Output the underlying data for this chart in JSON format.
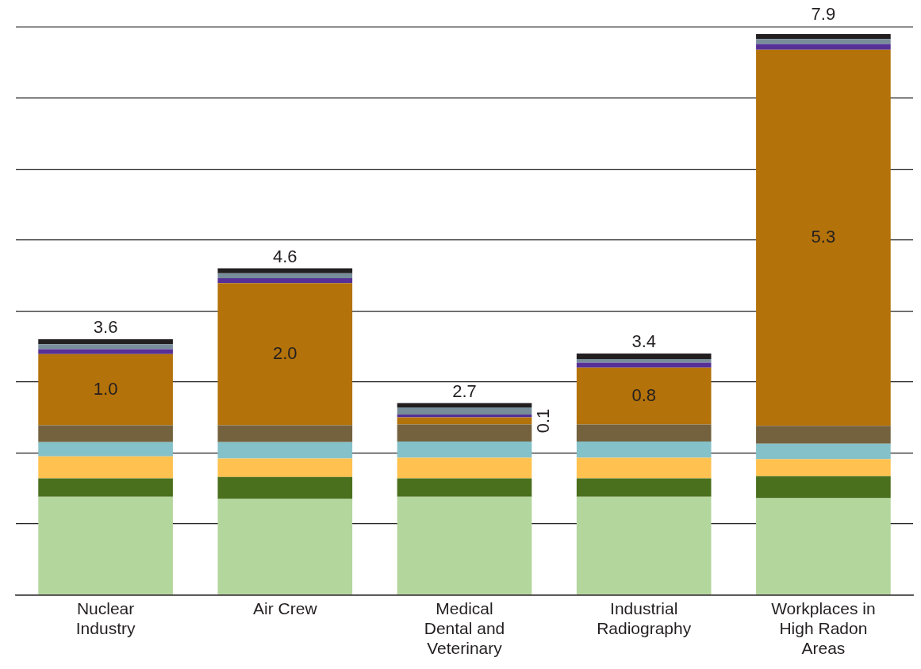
{
  "chart_data": {
    "type": "bar",
    "stacked": true,
    "categories": [
      "Nuclear Industry",
      "Air Crew",
      "Medical Dental and Veterinary",
      "Industrial Radiography",
      "Workplaces in High Radon Areas"
    ],
    "series": [
      {
        "color": "#b3d69d",
        "values": [
          1.38,
          1.35,
          1.38,
          1.38,
          1.36
        ]
      },
      {
        "color": "#4a701e",
        "values": [
          0.26,
          0.31,
          0.26,
          0.26,
          0.31
        ]
      },
      {
        "color": "#ffc14f",
        "values": [
          0.31,
          0.26,
          0.29,
          0.29,
          0.24
        ]
      },
      {
        "color": "#85c1c8",
        "values": [
          0.2,
          0.23,
          0.23,
          0.23,
          0.22
        ]
      },
      {
        "color": "#74623f",
        "values": [
          0.24,
          0.24,
          0.24,
          0.24,
          0.25
        ]
      },
      {
        "color": "#b3720a",
        "values": [
          1.0,
          2.0,
          0.1,
          0.8,
          5.3
        ],
        "value_labels": [
          "1.0",
          "2.0",
          "0.1",
          "0.8",
          "5.3"
        ]
      },
      {
        "color": "#563096",
        "values": [
          0.07,
          0.07,
          0.04,
          0.07,
          0.08
        ]
      },
      {
        "color": "#778d9a",
        "values": [
          0.07,
          0.07,
          0.1,
          0.05,
          0.07
        ]
      },
      {
        "color": "#231f20",
        "values": [
          0.07,
          0.07,
          0.06,
          0.08,
          0.07
        ]
      }
    ],
    "totals": [
      "3.6",
      "4.6",
      "2.7",
      "3.4",
      "7.9"
    ],
    "ylim": [
      0,
      8
    ],
    "yticks": [
      {
        "value": 0,
        "label": null
      },
      {
        "value": 1,
        "label": null
      },
      {
        "value": 2,
        "label": null
      },
      {
        "value": 3,
        "label": null
      },
      {
        "value": 4,
        "label": null
      },
      {
        "value": 5,
        "label": null
      },
      {
        "value": 6,
        "label": null
      },
      {
        "value": 7,
        "label": null
      }
    ],
    "tick_labels": "x",
    "grid": "y",
    "legend": false
  }
}
